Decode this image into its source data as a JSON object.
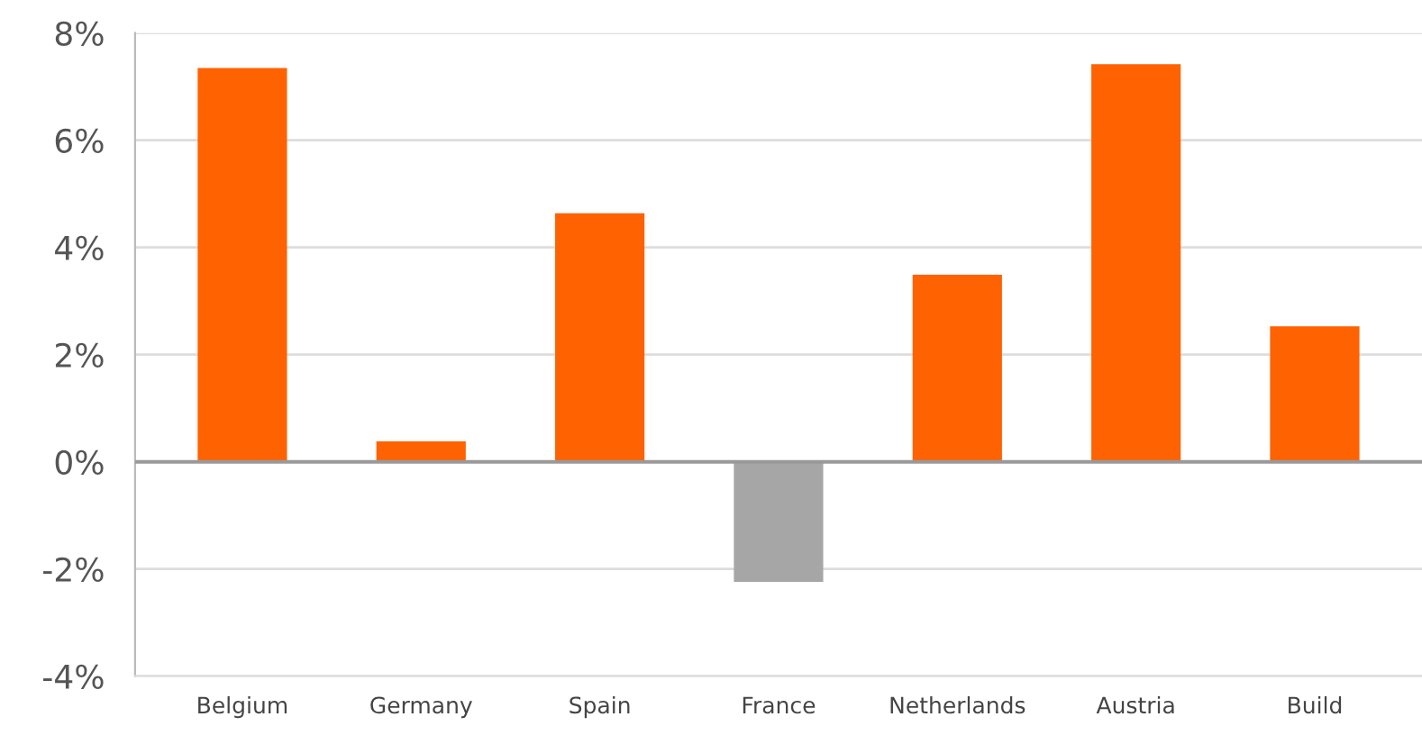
{
  "chart_data": {
    "type": "bar",
    "categories": [
      "Belgium",
      "Germany",
      "Spain",
      "France",
      "Netherlands",
      "Austria",
      "Build"
    ],
    "values": [
      7.35,
      0.38,
      4.64,
      -2.24,
      3.49,
      7.42,
      2.53
    ],
    "colors": [
      "#ff6200",
      "#ff6200",
      "#ff6200",
      "#a6a6a6",
      "#ff6200",
      "#ff6200",
      "#ff6200"
    ],
    "ylim": [
      -4,
      8
    ],
    "yticks": [
      {
        "value": -4,
        "label": "-4%"
      },
      {
        "value": -2,
        "label": "-2%"
      },
      {
        "value": 0,
        "label": "0%"
      },
      {
        "value": 2,
        "label": "2%"
      },
      {
        "value": 4,
        "label": "4%"
      },
      {
        "value": 6,
        "label": "6%"
      },
      {
        "value": 8,
        "label": "8%"
      }
    ],
    "grid": "y"
  }
}
